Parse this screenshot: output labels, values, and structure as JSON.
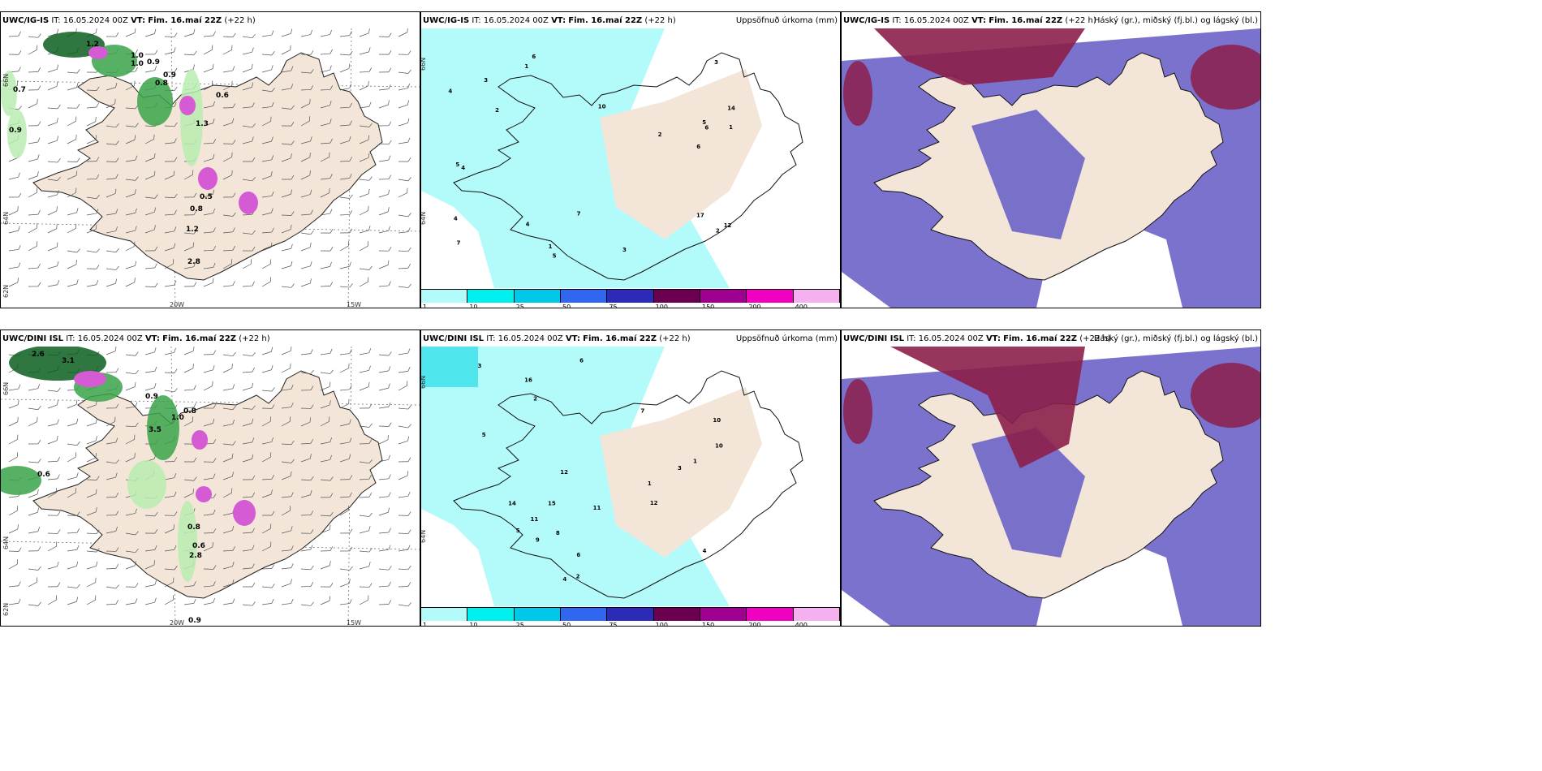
{
  "colors": {
    "land": "#f3e6d8",
    "sea": "#ffffff",
    "green_dark": "#0b5e1e",
    "green_mid": "#3aa34a",
    "green_light": "#b9ecb0",
    "magenta": "#d45bd3",
    "cyan_light": "#b3fbfb",
    "cyan": "#4fe6ee",
    "purple": "#6b63c8",
    "maroon": "#8c1f4a"
  },
  "rows": [
    {
      "model": "UWC/IG-IS",
      "it": "IT: 16.05.2024 00Z",
      "vt_label": "VT:",
      "vt_value": "Fim. 16.maí 22Z",
      "lead": "(+22 h)"
    },
    {
      "model": "UWC/DINI ISL",
      "it": "IT: 16.05.2024 00Z",
      "vt_label": "VT:",
      "vt_value": "Fim. 16.maí 22Z",
      "lead": "(+22 h)"
    }
  ],
  "titles": {
    "precip": "Uppsöfnuð úrkoma (mm)",
    "cloud": "Háský (gr.), miðský (fj.bl.) og lágský (bl.)"
  },
  "axes": {
    "lat1": "66N",
    "lat2": "64N",
    "lat3": "62N",
    "lon1": "20W",
    "lon2": "15W"
  },
  "colorbar": {
    "labels": [
      "1",
      "10",
      "25",
      "50",
      "75",
      "100",
      "150",
      "200",
      "400"
    ],
    "colors": [
      "#b3fbfb",
      "#00f0f0",
      "#00c8e8",
      "#2f67f0",
      "#2b2bb8",
      "#6b0050",
      "#a00090",
      "#f000c0",
      "#f5b0f0"
    ]
  },
  "wind_labels_top": [
    "1.2",
    "1.0",
    "0.9",
    "0.9",
    "0.8",
    "0.6",
    "0.7",
    "0.5",
    "0.8",
    "1.2",
    "2.8",
    "1.3",
    "0.9",
    "1.0"
  ],
  "wind_labels_bottom": [
    "2.6",
    "3.1",
    "0.9",
    "3.5",
    "0.6",
    "0.8",
    "0.6",
    "0.9",
    "1.0",
    "0.8",
    "2.8"
  ],
  "precip_labels_top": [
    "17",
    "14",
    "12",
    "10",
    "7",
    "6",
    "5",
    "4",
    "3",
    "2",
    "1",
    "4",
    "6",
    "5",
    "4",
    "3",
    "2",
    "1",
    "7",
    "6",
    "5",
    "4",
    "3",
    "2",
    "1"
  ],
  "precip_labels_bottom": [
    "15",
    "16",
    "14",
    "12",
    "11",
    "10",
    "9",
    "8",
    "7",
    "6",
    "5",
    "4",
    "3",
    "2",
    "1",
    "12",
    "11",
    "10",
    "6",
    "5",
    "4",
    "3",
    "2",
    "1"
  ]
}
